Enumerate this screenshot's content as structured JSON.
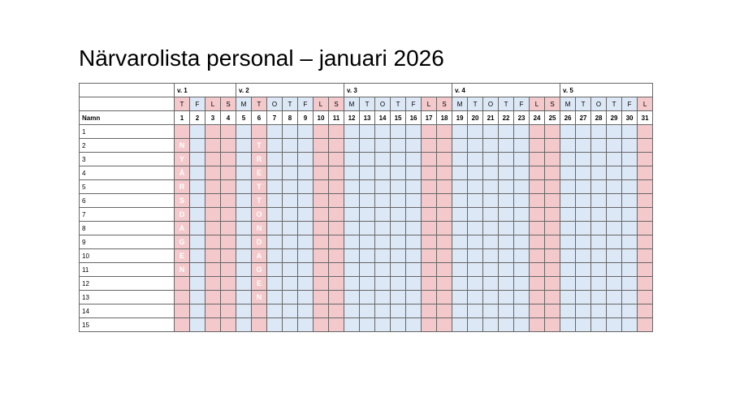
{
  "title": "Närvarolista personal – januari 2026",
  "name_header": "Namn",
  "weeks": [
    {
      "label": "v. 1",
      "span": 4
    },
    {
      "label": "v. 2",
      "span": 7
    },
    {
      "label": "v. 3",
      "span": 7
    },
    {
      "label": "v. 4",
      "span": 7
    },
    {
      "label": "v. 5",
      "span": 6
    }
  ],
  "weekdays": [
    "T",
    "F",
    "L",
    "S",
    "M",
    "T",
    "O",
    "T",
    "F",
    "L",
    "S",
    "M",
    "T",
    "O",
    "T",
    "F",
    "L",
    "S",
    "M",
    "T",
    "O",
    "T",
    "F",
    "L",
    "S",
    "M",
    "T",
    "O",
    "T",
    "F",
    "L"
  ],
  "days": [
    1,
    2,
    3,
    4,
    5,
    6,
    7,
    8,
    9,
    10,
    11,
    12,
    13,
    14,
    15,
    16,
    17,
    18,
    19,
    20,
    21,
    22,
    23,
    24,
    25,
    26,
    27,
    28,
    29,
    30,
    31
  ],
  "rows": [
    1,
    2,
    3,
    4,
    5,
    6,
    7,
    8,
    9,
    10,
    11,
    12,
    13,
    14,
    15
  ],
  "weekend_letters": [
    "L",
    "S"
  ],
  "holidays": [
    {
      "day": 1,
      "name": "NYÅRSDAGEN"
    },
    {
      "day": 6,
      "name": "TRETTONDAGEN"
    }
  ],
  "colors": {
    "off": "#f4c9cb",
    "work": "#dde8f6"
  }
}
